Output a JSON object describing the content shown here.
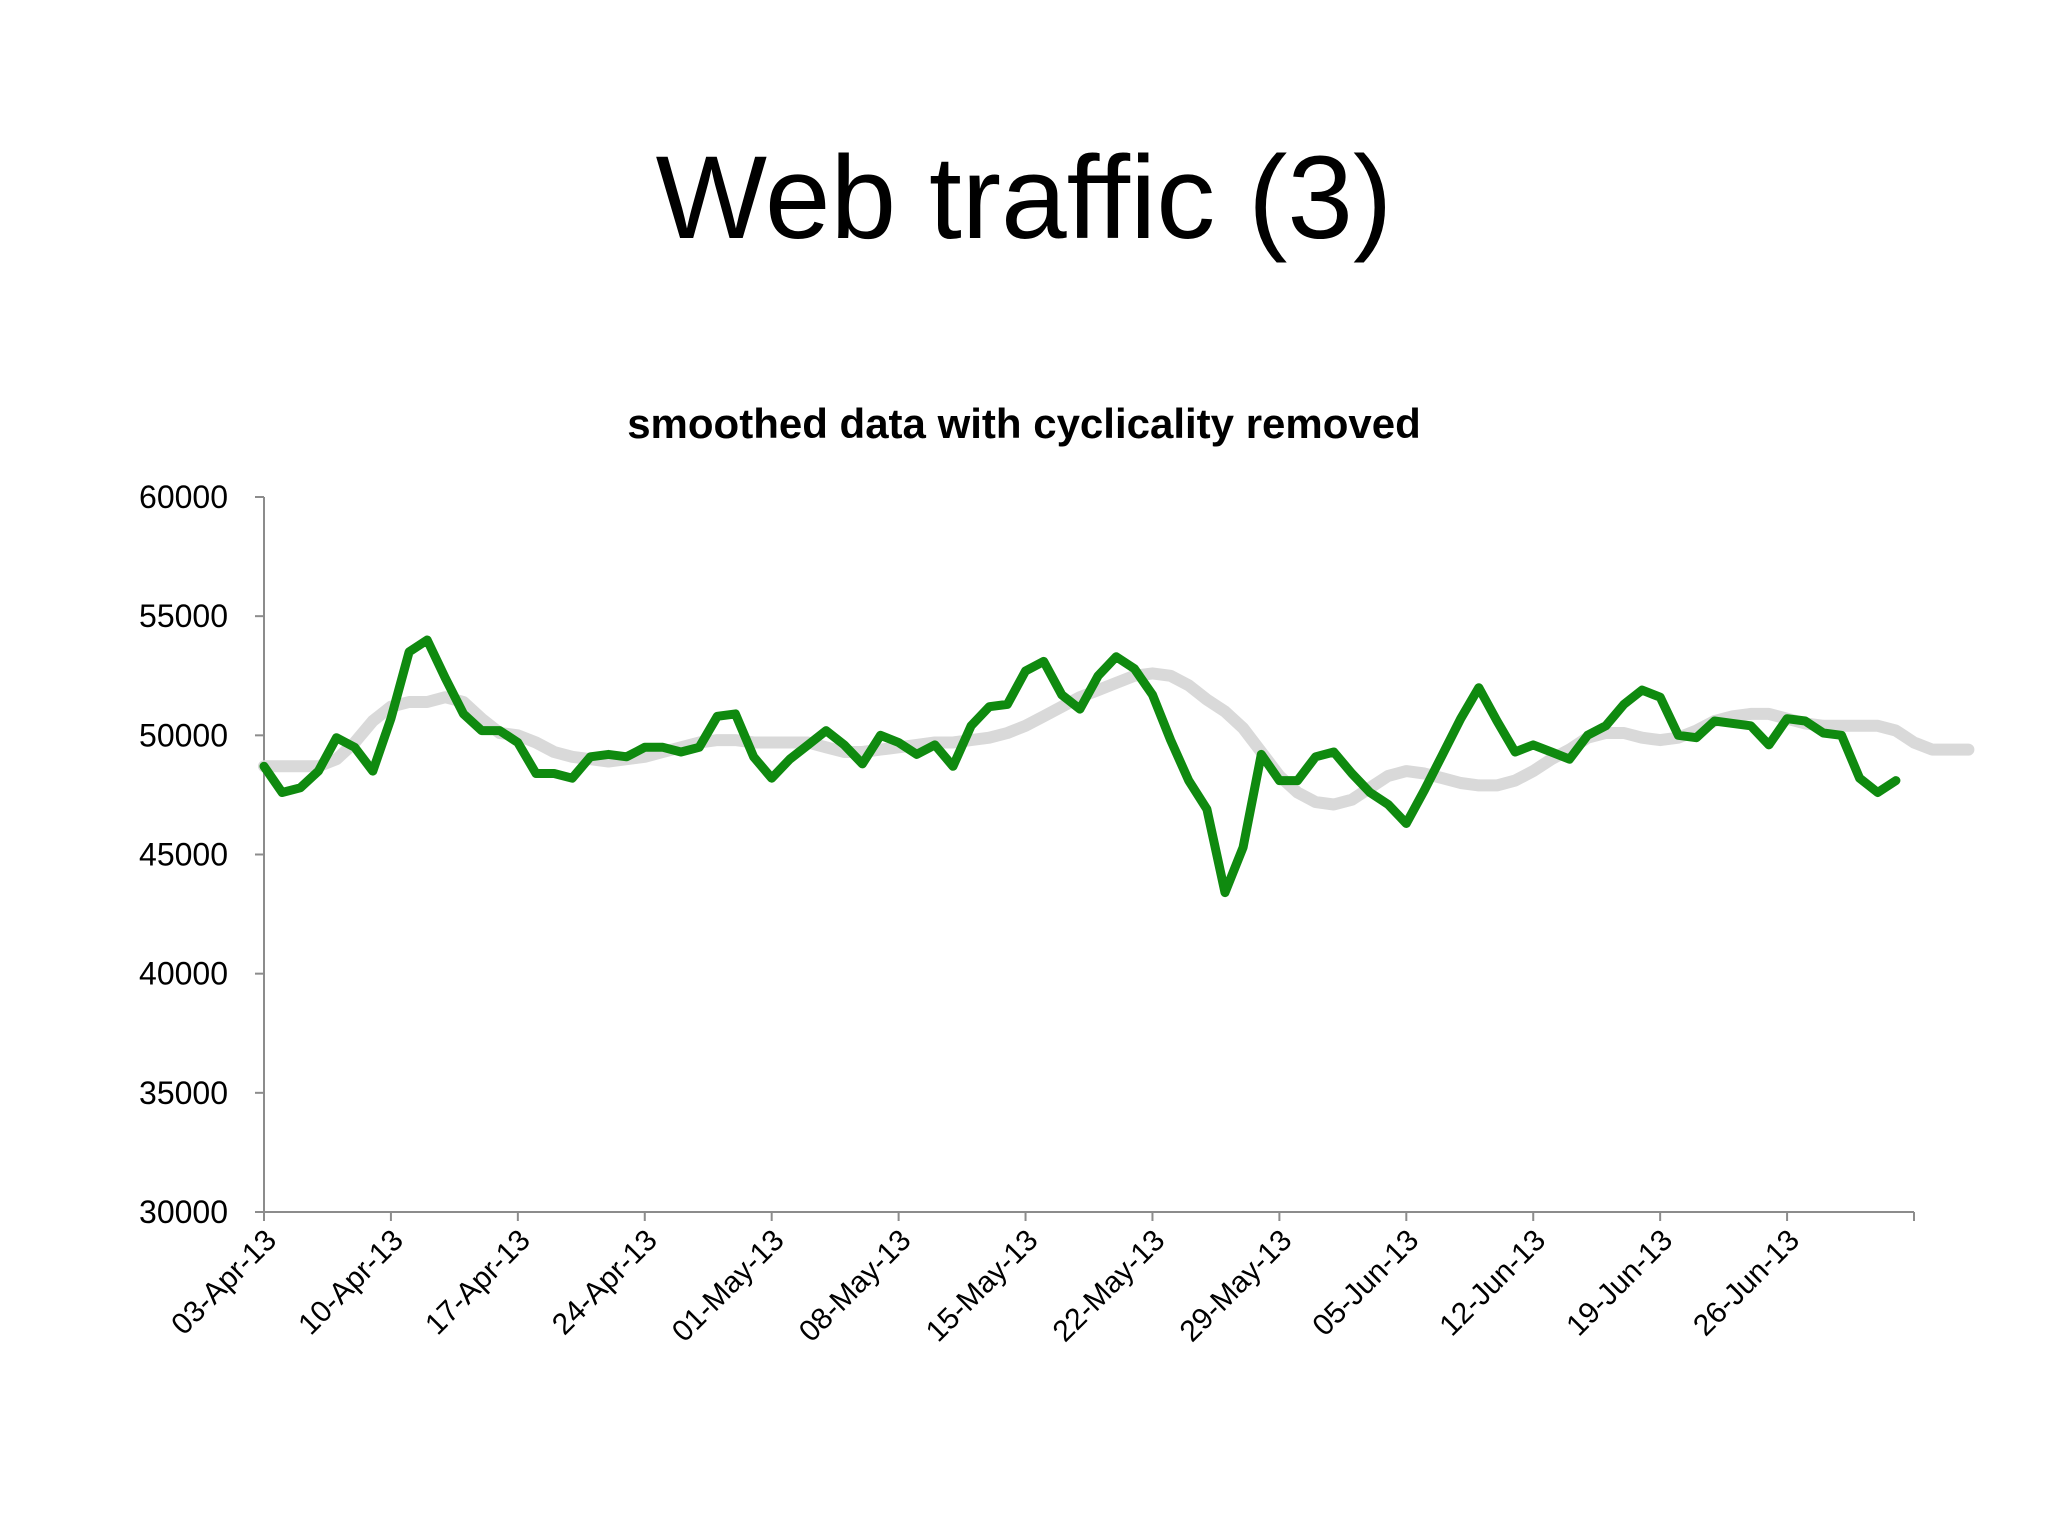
{
  "slide": {
    "title": "Web traffic (3)"
  },
  "chart_data": {
    "type": "line",
    "title": "smoothed data with cyclicality removed",
    "xlabel": "",
    "ylabel": "",
    "ylim": [
      30000,
      60000
    ],
    "yticks": [
      30000,
      35000,
      40000,
      45000,
      50000,
      55000,
      60000
    ],
    "xlim": [
      "2013-04-03",
      "2013-07-03"
    ],
    "x_tick_labels": [
      {
        "date": "2013-04-03",
        "label": "03-Apr-13"
      },
      {
        "date": "2013-04-10",
        "label": "10-Apr-13"
      },
      {
        "date": "2013-04-17",
        "label": "17-Apr-13"
      },
      {
        "date": "2013-04-24",
        "label": "24-Apr-13"
      },
      {
        "date": "2013-05-01",
        "label": "01-May-13"
      },
      {
        "date": "2013-05-08",
        "label": "08-May-13"
      },
      {
        "date": "2013-05-15",
        "label": "15-May-13"
      },
      {
        "date": "2013-05-22",
        "label": "22-May-13"
      },
      {
        "date": "2013-05-29",
        "label": "29-May-13"
      },
      {
        "date": "2013-06-05",
        "label": "05-Jun-13"
      },
      {
        "date": "2013-06-12",
        "label": "12-Jun-13"
      },
      {
        "date": "2013-06-19",
        "label": "19-Jun-13"
      },
      {
        "date": "2013-06-26",
        "label": "26-Jun-13"
      }
    ],
    "grid": false,
    "legend": "none",
    "series": [
      {
        "color": "#d9d9d9",
        "start_date": "2013-04-03",
        "values": [
          48700,
          48700,
          48700,
          48700,
          49000,
          49700,
          50600,
          51200,
          51400,
          51400,
          51600,
          51400,
          50700,
          50100,
          50000,
          49700,
          49300,
          49100,
          49000,
          48900,
          49000,
          49100,
          49300,
          49500,
          49700,
          49800,
          49800,
          49700,
          49700,
          49700,
          49700,
          49500,
          49300,
          49300,
          49400,
          49500,
          49600,
          49700,
          49700,
          49800,
          49900,
          50100,
          50400,
          50800,
          51200,
          51600,
          51900,
          52200,
          52500,
          52600,
          52500,
          52100,
          51500,
          51000,
          50300,
          49300,
          48300,
          47600,
          47200,
          47100,
          47300,
          47800,
          48300,
          48500,
          48400,
          48200,
          48000,
          47900,
          47900,
          48100,
          48500,
          49000,
          49400,
          49900,
          50100,
          50100,
          49900,
          49800,
          49900,
          50200,
          50600,
          50800,
          50900,
          50900,
          50700,
          50500,
          50400,
          50400,
          50400,
          50400,
          50200,
          49700,
          49400,
          49400,
          49400
        ]
      },
      {
        "color": "#0f8a0f",
        "start_date": "2013-04-03",
        "values": [
          48700,
          47600,
          47800,
          48500,
          49900,
          49500,
          48500,
          50700,
          53500,
          54000,
          52400,
          50900,
          50200,
          50200,
          49700,
          48400,
          48400,
          48200,
          49100,
          49200,
          49100,
          49500,
          49500,
          49300,
          49500,
          50800,
          50900,
          49100,
          48200,
          49000,
          49600,
          50200,
          49600,
          48800,
          50000,
          49700,
          49200,
          49600,
          48700,
          50400,
          51200,
          51300,
          52700,
          53100,
          51700,
          51100,
          52500,
          53300,
          52800,
          51700,
          49800,
          48100,
          46900,
          43400,
          45300,
          49200,
          48100,
          48100,
          49100,
          49300,
          48400,
          47600,
          47100,
          46300,
          47700,
          49200,
          50700,
          52000,
          50600,
          49300,
          49600,
          49300,
          49000,
          50000,
          50400,
          51300,
          51900,
          51600,
          50000,
          49900,
          50600,
          50500,
          50400,
          49600,
          50700,
          50600,
          50100,
          50000,
          48200,
          47600,
          48100
        ]
      }
    ]
  }
}
